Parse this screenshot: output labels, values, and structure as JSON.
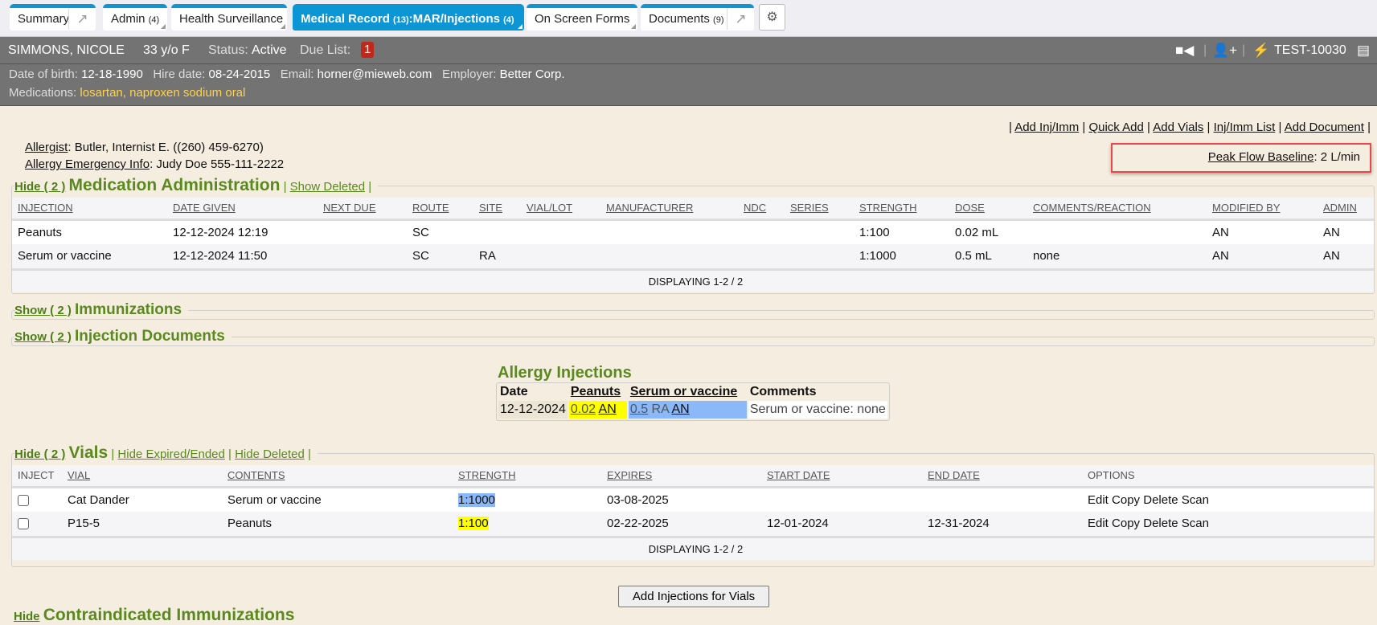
{
  "tabs": [
    {
      "label": "Summary"
    },
    {
      "label": "Admin",
      "count": "(4)"
    },
    {
      "label": "Health Surveillance"
    },
    {
      "label": "Medical Record",
      "count": "(13)",
      "suffix": ":MAR/Injections",
      "count2": "(4)",
      "active": true
    },
    {
      "label": "On Screen Forms"
    },
    {
      "label": "Documents",
      "count": "(9)"
    }
  ],
  "patient": {
    "name": "SIMMONS, NICOLE",
    "age": "33 y/o F",
    "status_label": "Status:",
    "status": "Active",
    "due_label": "Due List:",
    "due_count": "1",
    "id": "TEST-10030",
    "dob_label": "Date of birth:",
    "dob": "12-18-1990",
    "hire_label": "Hire date:",
    "hire": "08-24-2015",
    "email_label": "Email:",
    "email": "horner@mieweb.com",
    "employer_label": "Employer:",
    "employer": "Better Corp.",
    "meds_label": "Medications:",
    "meds": [
      "losartan",
      "naproxen sodium oral"
    ]
  },
  "links": [
    "Add Inj/Imm",
    "Quick Add",
    "Add Vials",
    "Inj/Imm List",
    "Add Document"
  ],
  "allergist": {
    "label": "Allergist",
    "value": ": Butler, Internist E. ((260) 459-6270)",
    "emergency_label": "Allergy Emergency Info",
    "emergency_value": ": Judy Doe 555-111-2222"
  },
  "peak_flow": {
    "label": "Peak Flow Baseline",
    "value": ": 2 L/min",
    "highlight_color": "#e8484a"
  },
  "med_admin": {
    "toggle": "Hide ( 2 )",
    "title": "Medication Administration",
    "show_deleted": "Show Deleted",
    "columns": [
      "INJECTION",
      "DATE GIVEN",
      "NEXT DUE",
      "ROUTE",
      "SITE",
      "VIAL/LOT",
      "MANUFACTURER",
      "NDC",
      "SERIES",
      "STRENGTH",
      "DOSE",
      "COMMENTS/REACTION",
      "MODIFIED BY",
      "ADMIN"
    ],
    "rows": [
      [
        "Peanuts",
        "12-12-2024 12:19",
        "",
        "SC",
        "",
        "",
        "",
        "",
        "",
        "1:100",
        "0.02 mL",
        "",
        "AN",
        "AN"
      ],
      [
        "Serum or vaccine",
        "12-12-2024 11:50",
        "",
        "SC",
        "RA",
        "",
        "",
        "",
        "",
        "1:1000",
        "0.5 mL",
        "none",
        "AN",
        "AN"
      ]
    ],
    "footer": "DISPLAYING 1-2 / 2"
  },
  "immunizations": {
    "toggle": "Show ( 2 )",
    "title": "Immunizations"
  },
  "injection_docs": {
    "toggle": "Show ( 2 )",
    "title": "Injection Documents"
  },
  "allergy_injections": {
    "title": "Allergy Injections",
    "columns": [
      "Date",
      "Peanuts",
      "Serum or vaccine",
      "Comments"
    ],
    "row": {
      "date": "12-12-2024",
      "peanuts_dose": "0.02",
      "peanuts_admin": "AN",
      "serum_dose": "0.5",
      "serum_site": "RA",
      "serum_admin": "AN",
      "comments": "Serum or vaccine: none"
    },
    "colors": {
      "peanuts": "#ffff00",
      "serum": "#8ab8f8"
    }
  },
  "vials": {
    "toggle": "Hide ( 2 )",
    "title": "Vials",
    "hide_expired": "Hide Expired/Ended",
    "hide_deleted": "Hide Deleted",
    "columns": [
      "INJECT",
      "VIAL",
      "CONTENTS",
      "STRENGTH",
      "EXPIRES",
      "START DATE",
      "END DATE",
      "OPTIONS"
    ],
    "rows": [
      {
        "vial": "Cat Dander",
        "contents": "Serum or vaccine",
        "strength": "1:1000",
        "expires": "03-08-2025",
        "start": "",
        "end": "",
        "options": [
          "Edit",
          "Copy",
          "Delete",
          "Scan"
        ]
      },
      {
        "vial": "P15-5",
        "contents": "Peanuts",
        "strength": "1:100",
        "expires": "02-22-2025",
        "start": "12-01-2024",
        "end": "12-31-2024",
        "options": [
          "Edit",
          "Copy",
          "Delete",
          "Scan"
        ]
      }
    ],
    "footer": "DISPLAYING 1-2 / 2"
  },
  "add_injections_button": "Add Injections for Vials",
  "contraindicated": {
    "toggle": "Hide",
    "title": "Contraindicated Immunizations"
  }
}
